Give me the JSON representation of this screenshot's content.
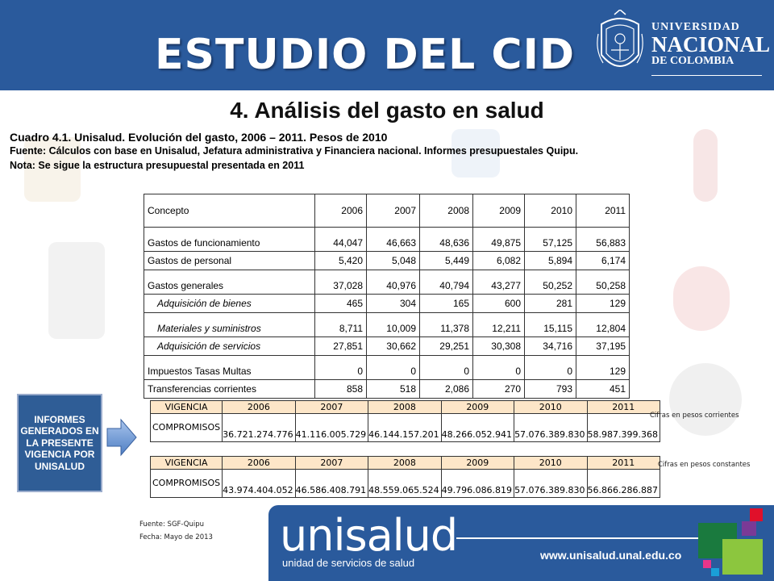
{
  "header": {
    "title": "ESTUDIO DEL CID",
    "university": {
      "line1": "UNIVERSIDAD",
      "line2": "NACIONAL",
      "line3": "DE COLOMBIA"
    }
  },
  "section_title": "4. Análisis del gasto en salud",
  "caption": {
    "title": "Cuadro 4.1.  Unisalud. Evolución del gasto, 2006 – 2011.  Pesos de 2010",
    "source": "Fuente:  Cálculos con base en  Unisalud, Jefatura administrativa y Financiera nacional.  Informes presupuestales Quipu.",
    "note": "Nota: Se sigue la estructura presupuestal presentada en 2011"
  },
  "main_table": {
    "headers": [
      "Concepto",
      "2006",
      "2007",
      "2008",
      "2009",
      "2010",
      "2011"
    ],
    "rows": [
      {
        "label": "Gastos de funcionamiento",
        "values": [
          "44,047",
          "46,663",
          "48,636",
          "49,875",
          "57,125",
          "56,883"
        ]
      },
      {
        "label": "Gastos de personal",
        "values": [
          "5,420",
          "5,048",
          "5,449",
          "6,082",
          "5,894",
          "6,174"
        ]
      },
      {
        "label": "Gastos generales",
        "values": [
          "37,028",
          "40,976",
          "40,794",
          "43,277",
          "50,252",
          "50,258"
        ]
      },
      {
        "label": "Adquisición de bienes",
        "values": [
          "465",
          "304",
          "165",
          "600",
          "281",
          "129"
        ]
      },
      {
        "label": "Materiales y suministros",
        "values": [
          "8,711",
          "10,009",
          "11,378",
          "12,211",
          "15,115",
          "12,804"
        ]
      },
      {
        "label": "Adquisición de servicios",
        "values": [
          "27,851",
          "30,662",
          "29,251",
          "30,308",
          "34,716",
          "37,195"
        ]
      },
      {
        "label": "Impuestos Tasas Multas",
        "values": [
          "0",
          "0",
          "0",
          "0",
          "0",
          "129"
        ]
      },
      {
        "label": "Transferencias corrientes",
        "values": [
          "858",
          "518",
          "2,086",
          "270",
          "793",
          "451"
        ]
      }
    ]
  },
  "info_box": {
    "text": "INFORMES GENERADOS EN LA PRESENTE VIGENCIA POR UNISALUD"
  },
  "vigencia_corrientes": {
    "header_label": "VIGENCIA",
    "years": [
      "2006",
      "2007",
      "2008",
      "2009",
      "2010",
      "2011"
    ],
    "row_label": "COMPROMISOS",
    "values": [
      "36.721.274.776",
      "41.116.005.729",
      "46.144.157.201",
      "48.266.052.941",
      "57.076.389.830",
      "58.987.399.368"
    ],
    "note": "Cifras en pesos corrientes"
  },
  "vigencia_constantes": {
    "header_label": "VIGENCIA",
    "years": [
      "2006",
      "2007",
      "2008",
      "2009",
      "2010",
      "2011"
    ],
    "row_label": "COMPROMISOS",
    "values": [
      "43.974.404.052",
      "46.586.408.791",
      "48.559.065.524",
      "49.796.086.819",
      "57.076.389.830",
      "56.866.286.887"
    ],
    "note": "Cifras en pesos constantes"
  },
  "footnote": {
    "source": "Fuente: SGF-Quipu",
    "date": "Fecha: Mayo de 2013"
  },
  "footer": {
    "logo": "unisalud",
    "subtitle": "unidad de servicios de salud",
    "url": "www.unisalud.unal.edu.co"
  },
  "colors": {
    "header_blue": "#2a5a9c",
    "vigencia_header": "#fde6c8",
    "info_box": "#2f5d96"
  }
}
